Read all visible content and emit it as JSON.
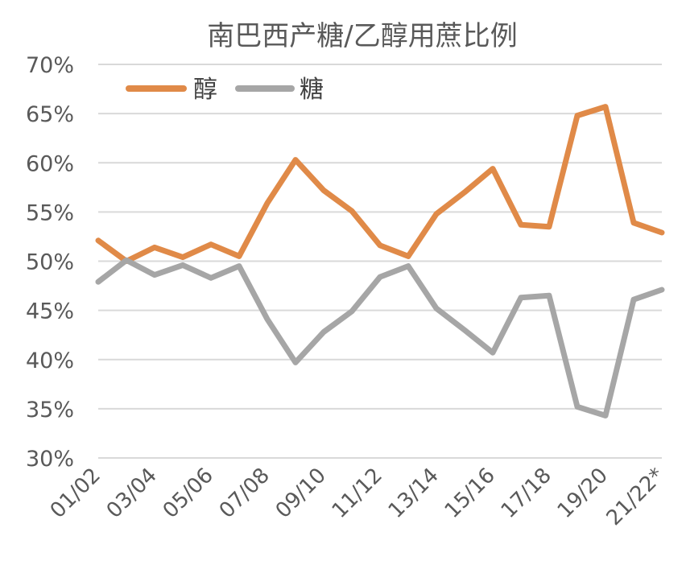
{
  "chart_data": {
    "type": "line",
    "title": "南巴西产糖/乙醇用蔗比例",
    "xlabel": "",
    "ylabel": "",
    "ylim": [
      0.3,
      0.7
    ],
    "y_ticks": [
      "30%",
      "35%",
      "40%",
      "45%",
      "50%",
      "55%",
      "60%",
      "65%",
      "70%"
    ],
    "y_tick_values": [
      0.3,
      0.35,
      0.4,
      0.45,
      0.5,
      0.55,
      0.6,
      0.65,
      0.7
    ],
    "x": [
      "01/02",
      "02/03",
      "03/04",
      "04/05",
      "05/06",
      "06/07",
      "07/08",
      "08/09",
      "09/10",
      "10/11",
      "11/12",
      "12/13",
      "13/14",
      "14/15",
      "15/16",
      "16/17",
      "17/18",
      "18/19",
      "19/20",
      "20/21",
      "21/22*"
    ],
    "x_tick_labels": [
      "01/02",
      "03/04",
      "05/06",
      "07/08",
      "09/10",
      "11/12",
      "13/14",
      "15/16",
      "17/18",
      "19/20",
      "21/22*"
    ],
    "grid": true,
    "legend_position": "top-left",
    "series": [
      {
        "name": "醇",
        "color": "#e08a48",
        "values": [
          0.521,
          0.5,
          0.514,
          0.504,
          0.517,
          0.505,
          0.559,
          0.603,
          0.572,
          0.551,
          0.516,
          0.505,
          0.548,
          0.57,
          0.594,
          0.537,
          0.535,
          0.648,
          0.657,
          0.539,
          0.529
        ]
      },
      {
        "name": "糖",
        "color": "#a6a6a6",
        "values": [
          0.479,
          0.501,
          0.486,
          0.496,
          0.483,
          0.495,
          0.441,
          0.397,
          0.428,
          0.449,
          0.484,
          0.495,
          0.452,
          0.43,
          0.407,
          0.463,
          0.465,
          0.352,
          0.343,
          0.461,
          0.471
        ]
      }
    ]
  }
}
